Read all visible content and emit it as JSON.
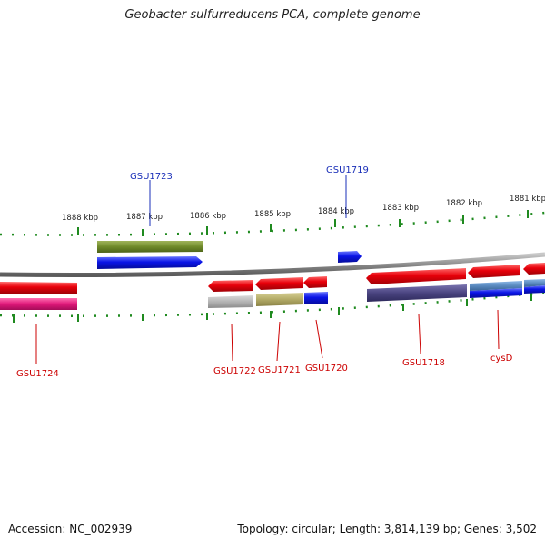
{
  "title": "Geobacter sulfurreducens PCA, complete genome",
  "footer": {
    "accession": "Accession: NC_002939",
    "summary": "Topology: circular; Length: 3,814,139 bp; Genes: 3,502"
  },
  "ticks": [
    "1888 kbp",
    "1887 kbp",
    "1886 kbp",
    "1885 kbp",
    "1884 kbp",
    "1883 kbp",
    "1882 kbp",
    "1881 kbp"
  ],
  "genes": {
    "GSU1723": "GSU1723",
    "GSU1719": "GSU1719",
    "GSU1724": "GSU1724",
    "GSU1722": "GSU1722",
    "GSU1721": "GSU1721",
    "GSU1720": "GSU1720",
    "GSU1718": "GSU1718",
    "cysD": "cysD"
  },
  "colors": {
    "forward_cds": "#e8000a",
    "reverse_cds": "#0a14e6",
    "backbone": "#8a8a8a",
    "tick": "#1f8a1f",
    "label_blue": "#1a2fb8",
    "label_red": "#cc0000",
    "olive_track": "#6f8a2a",
    "magenta_track": "#e0187a",
    "khaki_track": "#b2aa66",
    "gray_track": "#b4b4b4",
    "navy_track": "#4a4480",
    "steel_track": "#5a8abf"
  }
}
